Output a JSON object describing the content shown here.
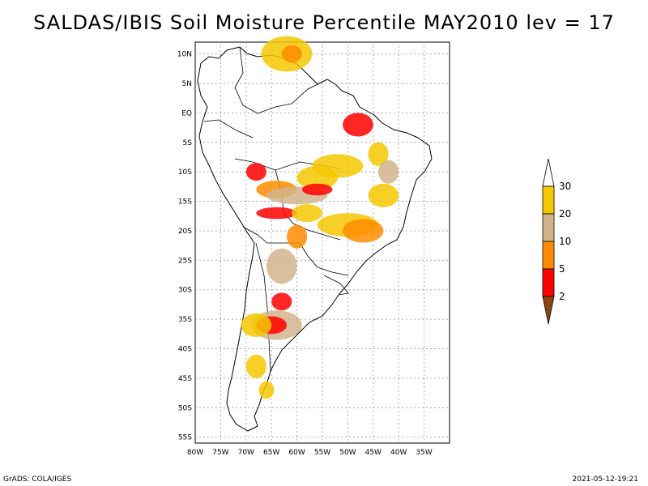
{
  "title": "SALDAS/IBIS Soil Moisture Percentile MAY2010 lev = 17",
  "map": {
    "lon_range": [
      -80,
      -30
    ],
    "lat_range": [
      -56,
      12
    ],
    "lon_ticks": [
      {
        "lon": -80,
        "label": "80W"
      },
      {
        "lon": -75,
        "label": "75W"
      },
      {
        "lon": -70,
        "label": "70W"
      },
      {
        "lon": -65,
        "label": "65W"
      },
      {
        "lon": -60,
        "label": "60W"
      },
      {
        "lon": -55,
        "label": "55W"
      },
      {
        "lon": -50,
        "label": "50W"
      },
      {
        "lon": -45,
        "label": "45W"
      },
      {
        "lon": -40,
        "label": "40W"
      },
      {
        "lon": -35,
        "label": "35W"
      }
    ],
    "lat_ticks": [
      {
        "lat": 10,
        "label": "10N"
      },
      {
        "lat": 5,
        "label": "5N"
      },
      {
        "lat": 0,
        "label": "EQ"
      },
      {
        "lat": -5,
        "label": "5S"
      },
      {
        "lat": -10,
        "label": "10S"
      },
      {
        "lat": -15,
        "label": "15S"
      },
      {
        "lat": -20,
        "label": "20S"
      },
      {
        "lat": -25,
        "label": "25S"
      },
      {
        "lat": -30,
        "label": "30S"
      },
      {
        "lat": -35,
        "label": "35S"
      },
      {
        "lat": -40,
        "label": "40S"
      },
      {
        "lat": -45,
        "label": "45S"
      },
      {
        "lat": -50,
        "label": "50S"
      },
      {
        "lat": -55,
        "label": "55S"
      }
    ]
  },
  "legend": {
    "levels": [
      {
        "label": "30"
      },
      {
        "label": "20"
      },
      {
        "label": "10"
      },
      {
        "label": "5"
      },
      {
        "label": "2"
      }
    ],
    "colors": {
      "above30": "#ffffff",
      "20-30": "#f5c800",
      "10-20": "#d2b48c",
      "5-10": "#ff8c00",
      "2-5": "#ff0000",
      "below2": "#8b4513"
    }
  },
  "footer": {
    "left": "GrADS: COLA/IGES",
    "right": "2021-05-12-19:21"
  }
}
